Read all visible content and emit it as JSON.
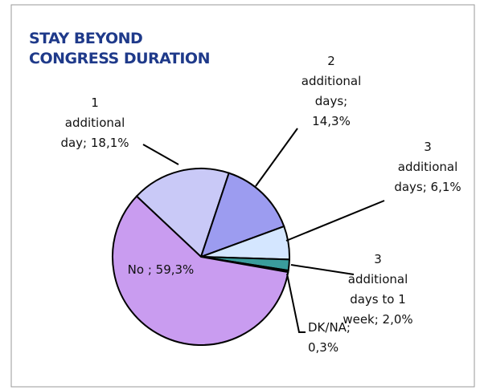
{
  "chart_data": {
    "type": "pie",
    "title": "STAY BEYOND CONGRESS DURATION",
    "values": [
      18.1,
      14.3,
      6.1,
      2.0,
      0.3,
      59.3
    ],
    "value_labels": [
      "1 additional day; 18,1%",
      "2 additional days; 14,3%",
      "3 additional days; 6,1%",
      "3 additional days to 1 week; 2,0%",
      "DK/NA; 0,3%",
      "No ; 59,3%"
    ],
    "colors": [
      "#c9c9f7",
      "#9c9cf0",
      "#d4e6ff",
      "#3a9c9c",
      "#1b3354",
      "#c99cf0"
    ]
  }
}
